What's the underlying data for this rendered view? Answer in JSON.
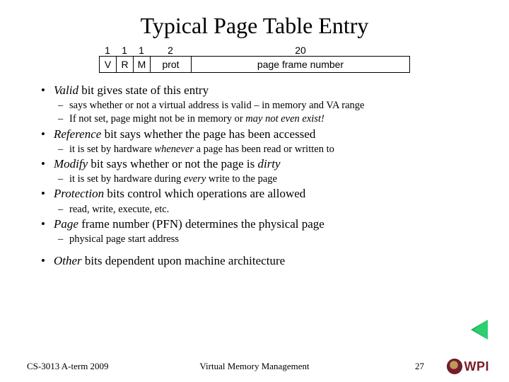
{
  "title": "Typical Page Table Entry",
  "diagram": {
    "widths": [
      "1",
      "1",
      "1",
      "2",
      "20"
    ],
    "fields": [
      "V",
      "R",
      "M",
      "prot",
      "page frame number"
    ]
  },
  "bullets": {
    "b1": {
      "pre": "",
      "em": "Valid",
      "post": " bit gives state of this entry"
    },
    "b1a": "says whether or not a virtual address is valid – in memory and VA range",
    "b1b_pre": "If not set, page might not be in memory or ",
    "b1b_em": "may not even exist!",
    "b2": {
      "em": "Reference",
      "post": " bit says whether the page has been accessed"
    },
    "b2a_pre": "it is set by hardware ",
    "b2a_em": "whenever",
    "b2a_post": " a page has been read or written to",
    "b3_em": "Modify",
    "b3_mid": " bit says whether or not the page is ",
    "b3_em2": "dirty",
    "b3a_pre": "it is set by hardware during ",
    "b3a_em": "every",
    "b3a_post": " write to the page",
    "b4_em": "Protection",
    "b4_post": " bits control which operations are allowed",
    "b4a": "read, write, execute, etc.",
    "b5_em": "Page",
    "b5_post": " frame number (PFN) determines the physical page",
    "b5a": "physical page start address",
    "b6_em": "Other",
    "b6_post": " bits dependent upon machine architecture"
  },
  "footer": {
    "left": "CS-3013 A-term 2009",
    "center": "Virtual Memory Management",
    "page": "27",
    "org": "WPI"
  },
  "colors": {
    "wpi_maroon": "#7a1c2a",
    "arrow_green": "#1fb159"
  }
}
